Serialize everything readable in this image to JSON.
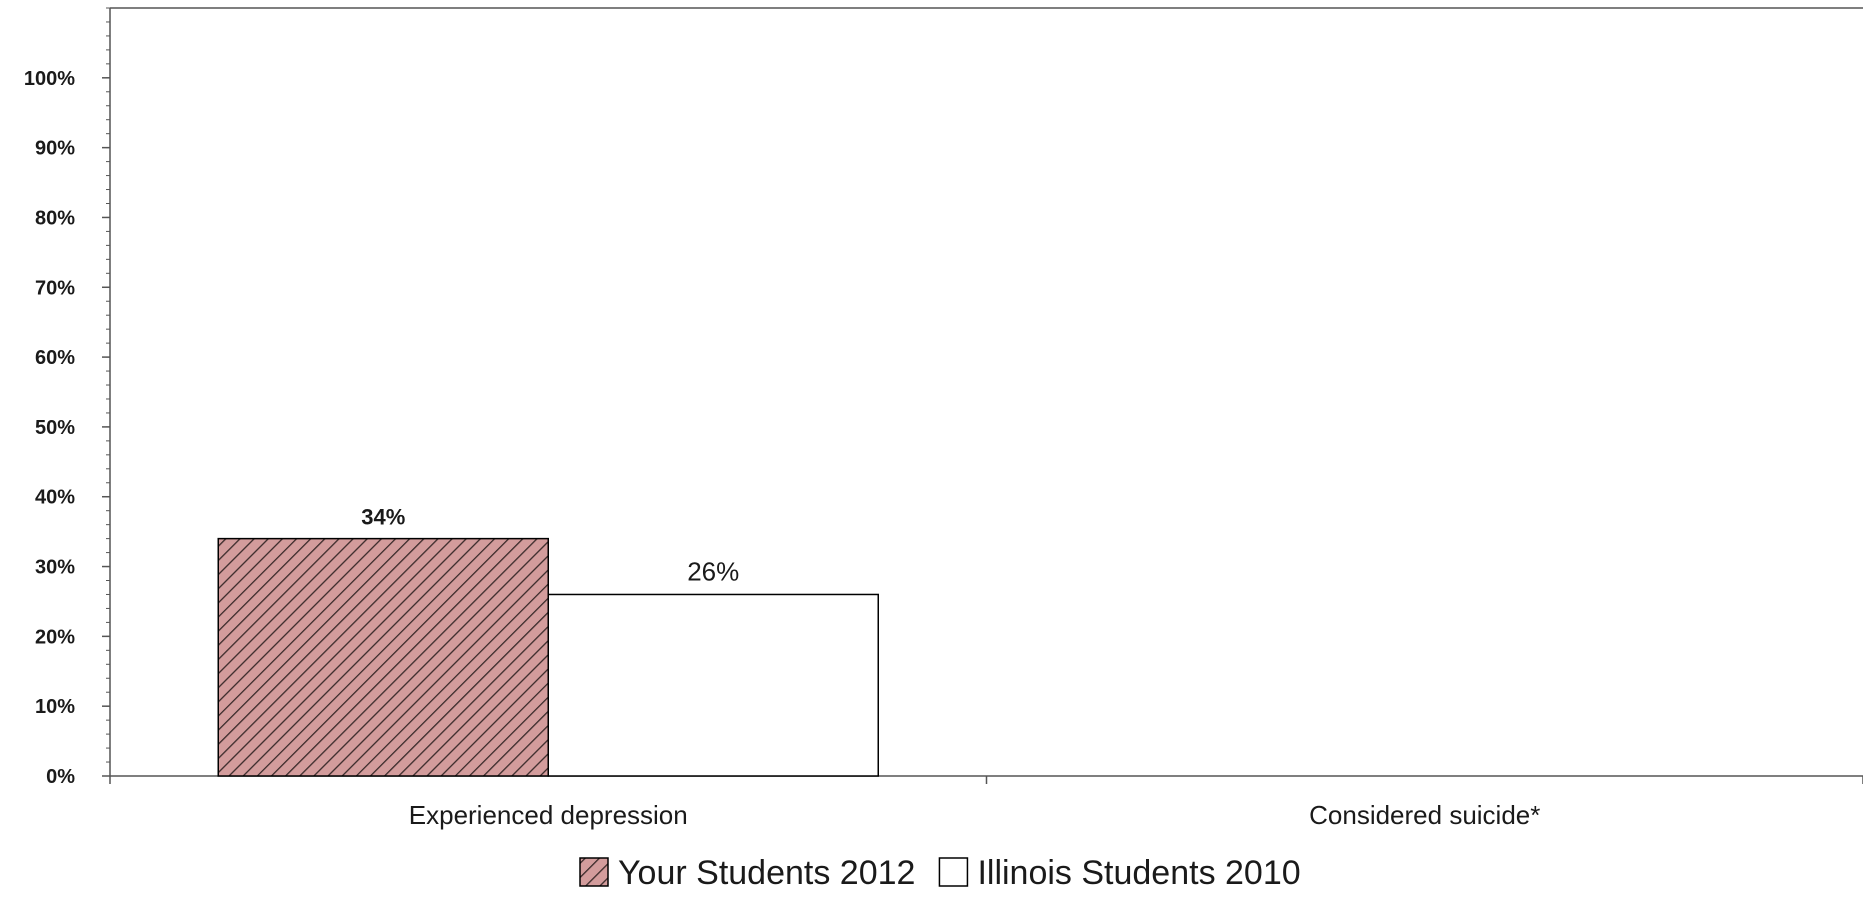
{
  "chart_data": {
    "type": "bar",
    "categories": [
      "Experienced depression",
      "Considered suicide*"
    ],
    "series": [
      {
        "name": "Your Students 2012",
        "values": [
          34,
          null
        ],
        "value_labels": [
          "34%",
          ""
        ],
        "fill": "#d39c9c",
        "pattern": "diagonal-hatch",
        "hatch_color": "#3a2a2a",
        "label_bold": true
      },
      {
        "name": "Illinois Students 2010",
        "values": [
          26,
          null
        ],
        "value_labels": [
          "26%",
          ""
        ],
        "fill": "#ffffff",
        "pattern": "none",
        "label_bold": false
      }
    ],
    "yaxis": {
      "ylim": [
        0,
        110
      ],
      "ticks": [
        0,
        10,
        20,
        30,
        40,
        50,
        60,
        70,
        80,
        90,
        100
      ],
      "tick_labels": [
        "0%",
        "10%",
        "20%",
        "30%",
        "40%",
        "50%",
        "60%",
        "70%",
        "80%",
        "90%",
        "100%"
      ],
      "minor_tick_step": 2
    },
    "title": "",
    "xlabel": "",
    "ylabel": "",
    "grid": false,
    "legend": {
      "position": "bottom-center"
    },
    "colors": {
      "axis": "#555555",
      "bar_outline": "#000000",
      "text": "#1a1a1a"
    }
  }
}
